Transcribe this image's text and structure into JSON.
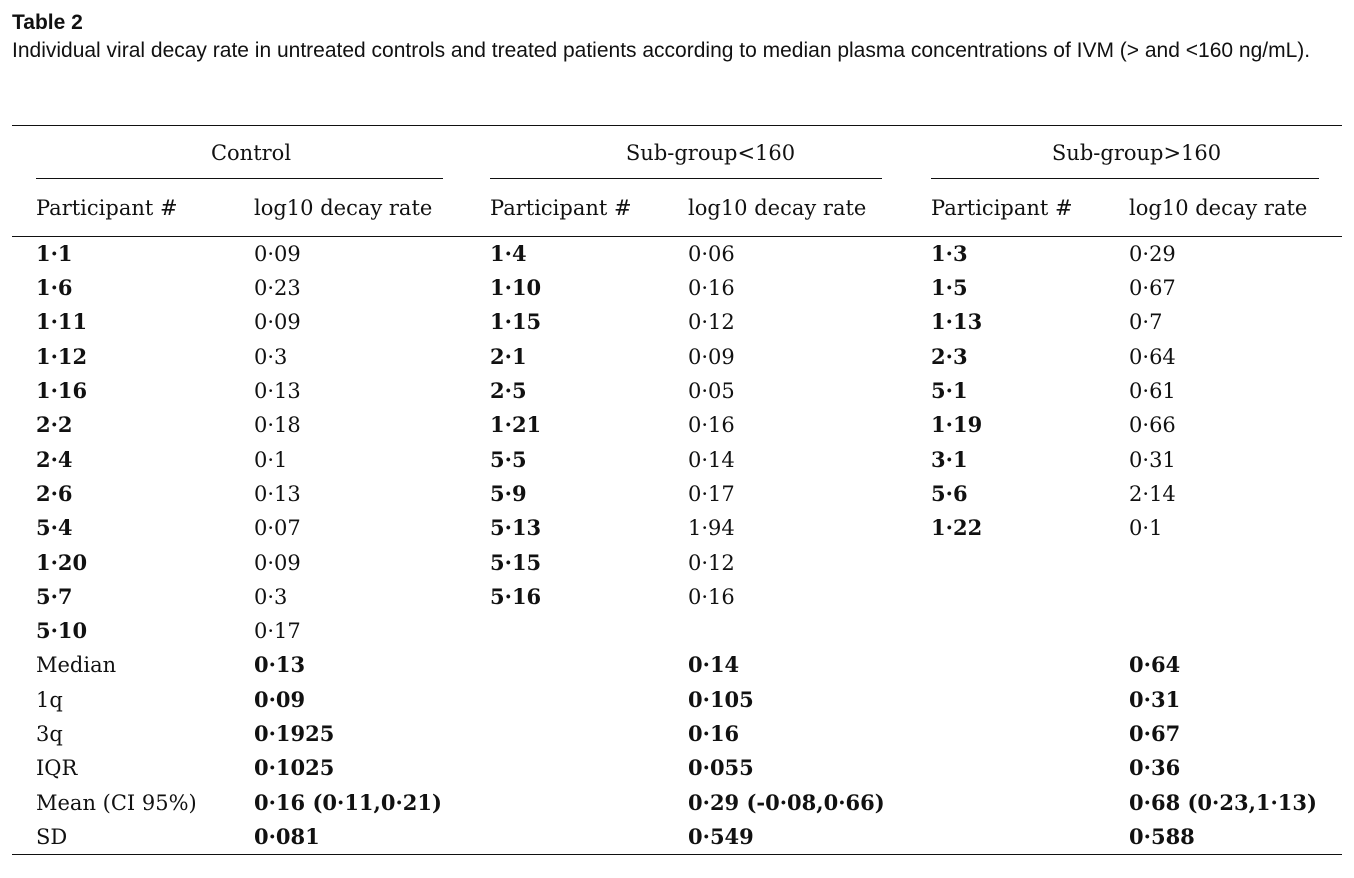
{
  "title": "Table 2",
  "caption": "Individual viral decay rate in untreated controls and treated patients according to median plasma concentrations of IVM (> and <160 ng/mL).",
  "groups": [
    "Control",
    "Sub-group<160",
    "Sub-group>160"
  ],
  "column_headers": [
    "Participant #",
    "log10 decay rate",
    "Participant #",
    "log10 decay rate",
    "Participant #",
    "log10 decay rate"
  ],
  "rows": [
    [
      "1·1",
      "0·09",
      "1·4",
      "0·06",
      "1·3",
      "0·29"
    ],
    [
      "1·6",
      "0·23",
      "1·10",
      "0·16",
      "1·5",
      "0·67"
    ],
    [
      "1·11",
      "0·09",
      "1·15",
      "0·12",
      "1·13",
      "0·7"
    ],
    [
      "1·12",
      "0·3",
      "2·1",
      "0·09",
      "2·3",
      "0·64"
    ],
    [
      "1·16",
      "0·13",
      "2·5",
      "0·05",
      "5·1",
      "0·61"
    ],
    [
      "2·2",
      "0·18",
      "1·21",
      "0·16",
      "1·19",
      "0·66"
    ],
    [
      "2·4",
      "0·1",
      "5·5",
      "0·14",
      "3·1",
      "0·31"
    ],
    [
      "2·6",
      "0·13",
      "5·9",
      "0·17",
      "5·6",
      "2·14"
    ],
    [
      "5·4",
      "0·07",
      "5·13",
      "1·94",
      "1·22",
      "0·1"
    ],
    [
      "1·20",
      "0·09",
      "5·15",
      "0·12",
      "",
      ""
    ],
    [
      "5·7",
      "0·3",
      "5·16",
      "0·16",
      "",
      ""
    ],
    [
      "5·10",
      "0·17",
      "",
      "",
      "",
      ""
    ]
  ],
  "stats": [
    {
      "label": "Median",
      "values": [
        "0·13",
        "0·14",
        "0·64"
      ]
    },
    {
      "label": "1q",
      "values": [
        "0·09",
        "0·105",
        "0·31"
      ]
    },
    {
      "label": "3q",
      "values": [
        "0·1925",
        "0·16",
        "0·67"
      ]
    },
    {
      "label": "IQR",
      "values": [
        "0·1025",
        "0·055",
        "0·36"
      ]
    },
    {
      "label": "Mean (CI 95%)",
      "values": [
        "0·16 (0·11,0·21)",
        "0·29 (-0·08,0·66)",
        "0·68 (0·23,1·13)"
      ]
    },
    {
      "label": "SD",
      "values": [
        "0·081",
        "0·549",
        "0·588"
      ]
    }
  ]
}
